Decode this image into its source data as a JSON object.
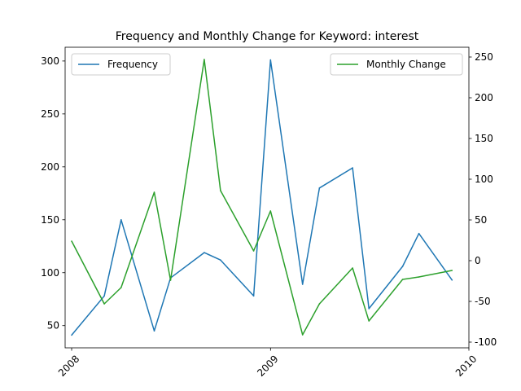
{
  "chart_data": {
    "type": "line",
    "title": "Frequency and Monthly Change for Keyword: interest",
    "x": [
      "2008-01",
      "2008-03",
      "2008-04",
      "2008-06",
      "2008-07",
      "2008-09",
      "2008-10",
      "2008-12",
      "2009-01",
      "2009-03",
      "2009-04",
      "2009-06",
      "2009-07",
      "2009-09",
      "2009-10",
      "2009-12"
    ],
    "x_ticks": [
      "2008",
      "2009",
      "2010"
    ],
    "xlim": [
      "2007-12-20",
      "2010-01-01"
    ],
    "series": [
      {
        "name": "Frequency",
        "axis": "left",
        "color": "#1f77b4",
        "values": [
          41,
          78,
          150,
          45,
          95,
          119,
          112,
          78,
          301,
          89,
          180,
          199,
          66,
          106,
          137,
          93
        ]
      },
      {
        "name": "Monthly Change",
        "axis": "right",
        "color": "#2ca02c",
        "values": [
          24,
          -53,
          -33,
          84,
          -24,
          247,
          86,
          12,
          61,
          -91,
          -53,
          -9,
          -74,
          -23,
          -20,
          -12
        ]
      }
    ],
    "y_left": {
      "ylim": [
        29,
        313
      ],
      "ticks": [
        "50",
        "100",
        "150",
        "200",
        "250",
        "300"
      ]
    },
    "y_right": {
      "ylim": [
        -107,
        262
      ],
      "ticks": [
        "-100",
        "-50",
        "0",
        "50",
        "100",
        "150",
        "200",
        "250"
      ]
    },
    "legends": [
      {
        "position": "upper-left",
        "entries": [
          "Frequency"
        ]
      },
      {
        "position": "upper-right",
        "entries": [
          "Monthly Change"
        ]
      }
    ],
    "grid": false
  }
}
